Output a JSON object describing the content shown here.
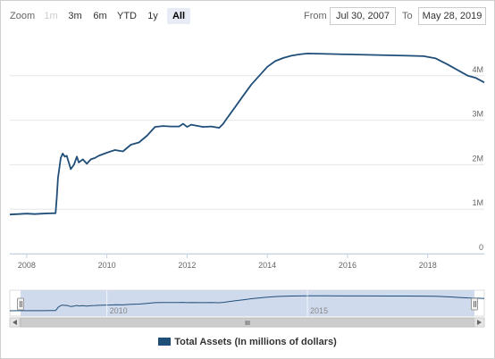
{
  "range_selector": {
    "zoom_label": "Zoom",
    "buttons": [
      "1m",
      "3m",
      "6m",
      "YTD",
      "1y",
      "All"
    ],
    "selected": "All",
    "disabled": [
      "1m"
    ],
    "from_label": "From",
    "from_value": "Jul 30, 2007",
    "to_label": "To",
    "to_value": "May 28, 2019"
  },
  "navigator": {
    "labels": [
      "2010",
      "2015"
    ],
    "scrollbar_grip": "III"
  },
  "legend": {
    "series_label": "Total Assets (In millions of dollars)"
  },
  "colors": {
    "series": "#1f4e79",
    "navigator_fill": "#c8d4ea",
    "navigator_handle": "#f2f2f2",
    "grid": "#e6e6e6"
  },
  "chart_data": {
    "type": "line",
    "title": "",
    "xlabel": "",
    "ylabel": "",
    "x_unit": "year",
    "xlim": [
      2007.58,
      2019.41
    ],
    "ylim": [
      0,
      5000000
    ],
    "x_ticks": [
      "2008",
      "2010",
      "2012",
      "2014",
      "2016",
      "2018"
    ],
    "y_ticks": [
      "0",
      "1M",
      "2M",
      "3M",
      "4M"
    ],
    "grid": "horizontal",
    "legend_position": "bottom-center",
    "series": [
      {
        "name": "Total Assets (In millions of dollars)",
        "x": [
          2007.58,
          2007.8,
          2008.0,
          2008.2,
          2008.4,
          2008.6,
          2008.72,
          2008.75,
          2008.78,
          2008.85,
          2008.9,
          2008.95,
          2009.0,
          2009.1,
          2009.18,
          2009.25,
          2009.3,
          2009.4,
          2009.5,
          2009.6,
          2009.7,
          2009.8,
          2010.0,
          2010.2,
          2010.4,
          2010.6,
          2010.8,
          2011.0,
          2011.2,
          2011.4,
          2011.6,
          2011.8,
          2011.9,
          2012.0,
          2012.1,
          2012.4,
          2012.6,
          2012.8,
          2012.9,
          2013.0,
          2013.2,
          2013.4,
          2013.6,
          2013.8,
          2014.0,
          2014.2,
          2014.4,
          2014.6,
          2014.8,
          2015.0,
          2015.5,
          2016.0,
          2016.5,
          2017.0,
          2017.5,
          2017.9,
          2018.2,
          2018.5,
          2018.8,
          2019.0,
          2019.2,
          2019.41
        ],
        "y": [
          880000,
          890000,
          900000,
          890000,
          900000,
          905000,
          910000,
          1250000,
          1700000,
          2150000,
          2250000,
          2180000,
          2200000,
          1900000,
          2000000,
          2180000,
          2050000,
          2120000,
          2020000,
          2120000,
          2150000,
          2200000,
          2270000,
          2330000,
          2300000,
          2450000,
          2500000,
          2650000,
          2850000,
          2870000,
          2860000,
          2860000,
          2920000,
          2850000,
          2900000,
          2850000,
          2860000,
          2830000,
          2920000,
          3050000,
          3300000,
          3550000,
          3800000,
          4000000,
          4200000,
          4330000,
          4400000,
          4450000,
          4480000,
          4500000,
          4490000,
          4480000,
          4470000,
          4460000,
          4450000,
          4440000,
          4390000,
          4250000,
          4100000,
          4000000,
          3950000,
          3850000
        ]
      }
    ]
  }
}
